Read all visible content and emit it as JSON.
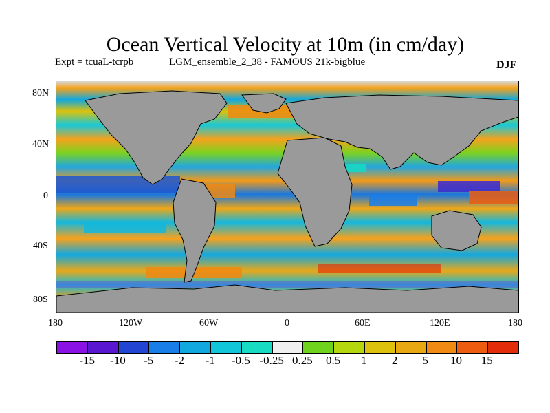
{
  "title": "Ocean Vertical Velocity at 10m (in cm/day)",
  "experiment": "Expt = tcuaL-tcrpb",
  "ensemble": "LGM_ensemble_2_38 - FAMOUS 21k-bigblue",
  "season": "DJF",
  "map": {
    "lat_ticks": [
      "80N",
      "40N",
      "0",
      "40S",
      "80S"
    ],
    "lon_ticks": [
      "180",
      "120W",
      "60W",
      "0",
      "60E",
      "120E",
      "180"
    ],
    "land_color": "#9a9a9a"
  },
  "colorbar": {
    "colors": [
      "#8b12e5",
      "#5a17d1",
      "#2345d4",
      "#1a7ee8",
      "#11a8e0",
      "#10c6d8",
      "#17dbc3",
      "#f0f0f0",
      "#6fd31e",
      "#b4d80d",
      "#dcc20c",
      "#e7a811",
      "#f08a12",
      "#ee5d0f",
      "#e32d0a"
    ],
    "labels": [
      "-15",
      "-10",
      "-5",
      "-2",
      "-1",
      "-0.5",
      "-0.25",
      "0.25",
      "0.5",
      "1",
      "2",
      "5",
      "10",
      "15"
    ]
  }
}
